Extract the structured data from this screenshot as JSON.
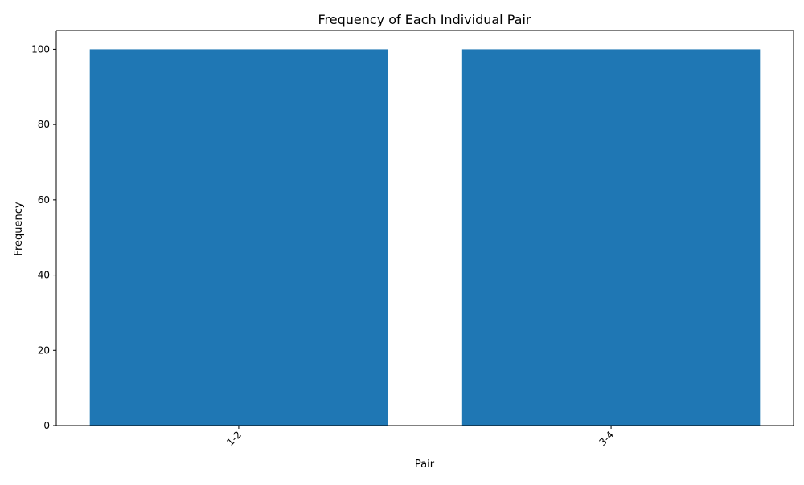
{
  "chart_data": {
    "type": "bar",
    "title": "Frequency of Each Individual Pair",
    "xlabel": "Pair",
    "ylabel": "Frequency",
    "categories": [
      "1-2",
      "3-4"
    ],
    "values": [
      100,
      100
    ],
    "ylim": [
      0,
      105
    ],
    "yticks": [
      0,
      20,
      40,
      60,
      80,
      100
    ],
    "xtick_rotation": 45,
    "bar_color": "#1f77b4",
    "grid": false,
    "legend": "none"
  }
}
